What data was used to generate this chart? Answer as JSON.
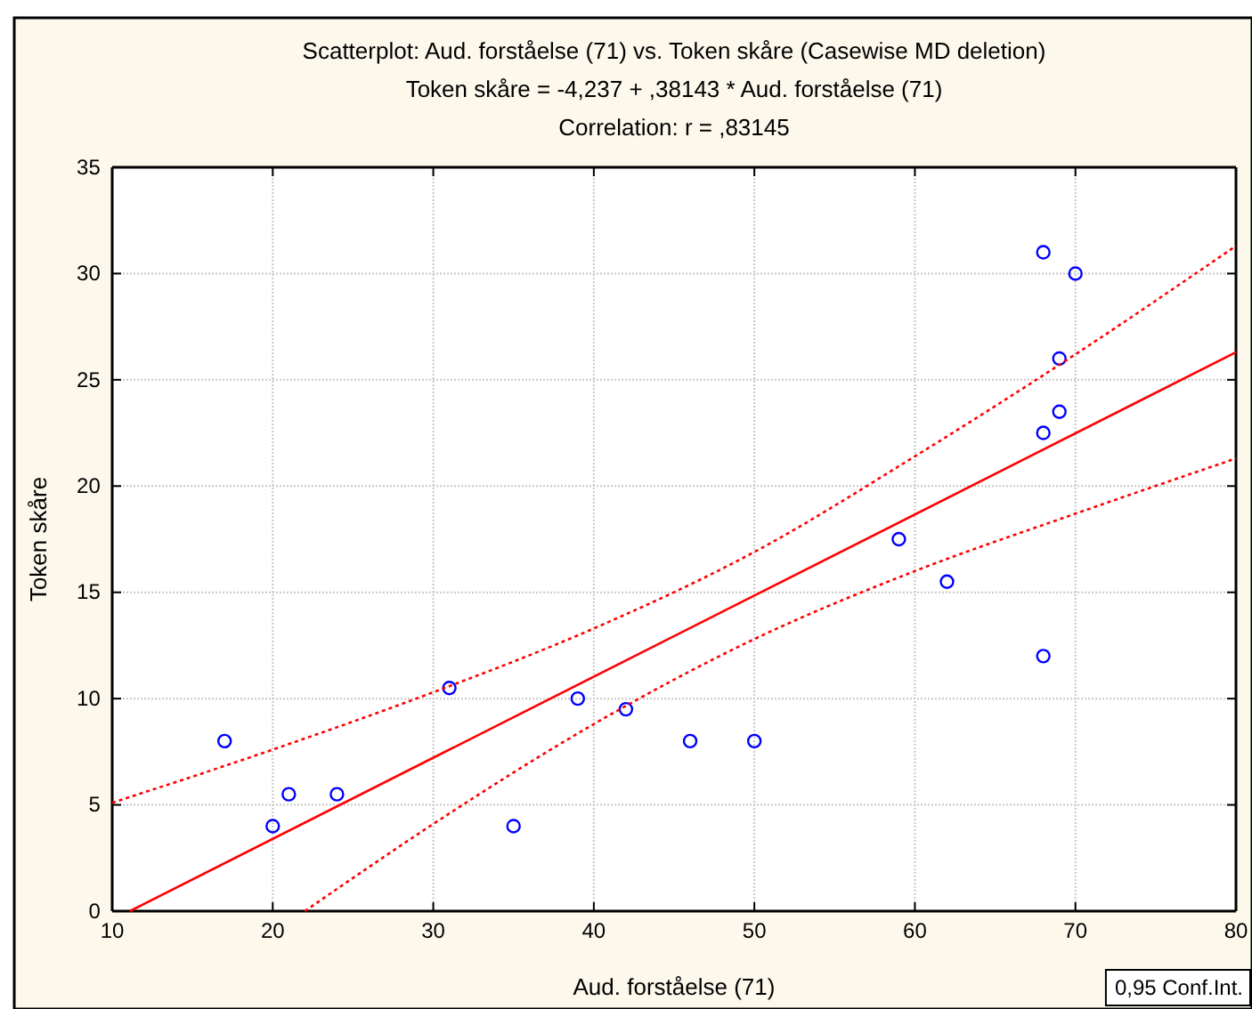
{
  "chart_data": {
    "type": "scatter",
    "title": "Scatterplot: Aud. forståelse (71) vs. Token skåre (Casewise MD deletion)",
    "subtitle": "Token skåre = -4,237 + ,38143 * Aud. forståelse (71)\nCorrelation: r = ,83145",
    "xlabel": "Aud. forståelse (71)",
    "ylabel": "Token skåre",
    "xlim": [
      10,
      80
    ],
    "ylim": [
      0,
      35
    ],
    "xticks": [
      10,
      20,
      30,
      40,
      50,
      60,
      70,
      80
    ],
    "yticks": [
      0,
      5,
      10,
      15,
      20,
      25,
      30,
      35
    ],
    "grid": true,
    "annotations": [
      "0,95 Conf.Int."
    ],
    "series": [
      {
        "marker": "circle",
        "color": "#0000ff",
        "x": [
          17,
          20,
          21,
          24,
          31,
          35,
          39,
          42,
          46,
          50,
          59,
          62,
          68,
          70,
          69,
          69,
          68,
          68
        ],
        "values": [
          8,
          4,
          5.5,
          5.5,
          10.5,
          4,
          10,
          9.5,
          8,
          8,
          17.5,
          15.5,
          31,
          30,
          26,
          23.5,
          22.5,
          12
        ]
      },
      {
        "type": "line",
        "line_style": "solid",
        "color": "#ff0000",
        "x": [
          11.1,
          80
        ],
        "values": [
          0,
          26.3
        ]
      },
      {
        "type": "line",
        "line_style": "dotted",
        "color": "#ff0000",
        "x": [
          10,
          20,
          30,
          40,
          50,
          60,
          70,
          80
        ],
        "values": [
          5.1,
          7.6,
          10.3,
          13.3,
          16.9,
          21.4,
          26.2,
          31.3
        ]
      },
      {
        "type": "line",
        "line_style": "dotted",
        "color": "#ff0000",
        "x": [
          22,
          30,
          40,
          50,
          60,
          70,
          80
        ],
        "values": [
          0,
          4.1,
          8.8,
          12.8,
          16,
          18.7,
          21.3
        ]
      }
    ]
  }
}
